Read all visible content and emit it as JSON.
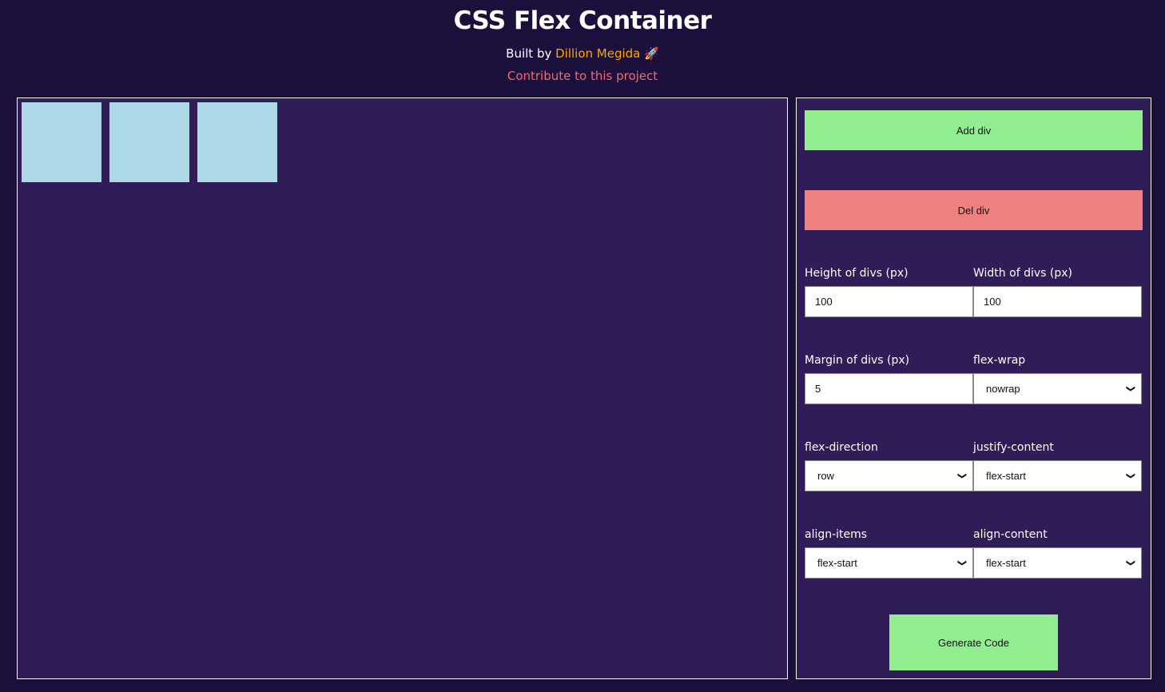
{
  "header": {
    "title": "CSS Flex Container",
    "built_by": "Built by",
    "author": "Dillion Megida",
    "rocket": "🚀",
    "contribute": "Contribute to this project"
  },
  "stage": {
    "div_count": 3,
    "div_color": "#add8e6"
  },
  "controls": {
    "add_label": "Add div",
    "del_label": "Del div",
    "height_label": "Height of divs (px)",
    "height_value": "100",
    "width_label": "Width of divs (px)",
    "width_value": "100",
    "margin_label": "Margin of divs (px)",
    "margin_value": "5",
    "wrap_label": "flex-wrap",
    "wrap_value": "nowrap",
    "direction_label": "flex-direction",
    "direction_value": "row",
    "justify_label": "justify-content",
    "justify_value": "flex-start",
    "align_items_label": "align-items",
    "align_items_value": "flex-start",
    "align_content_label": "align-content",
    "align_content_value": "flex-start",
    "generate_label": "Generate Code"
  },
  "colors": {
    "background": "#1b0f3b",
    "panel": "#301c57",
    "add": "#90ee90",
    "del": "#f08080",
    "author": "#ffa500",
    "link": "#f06a78"
  }
}
